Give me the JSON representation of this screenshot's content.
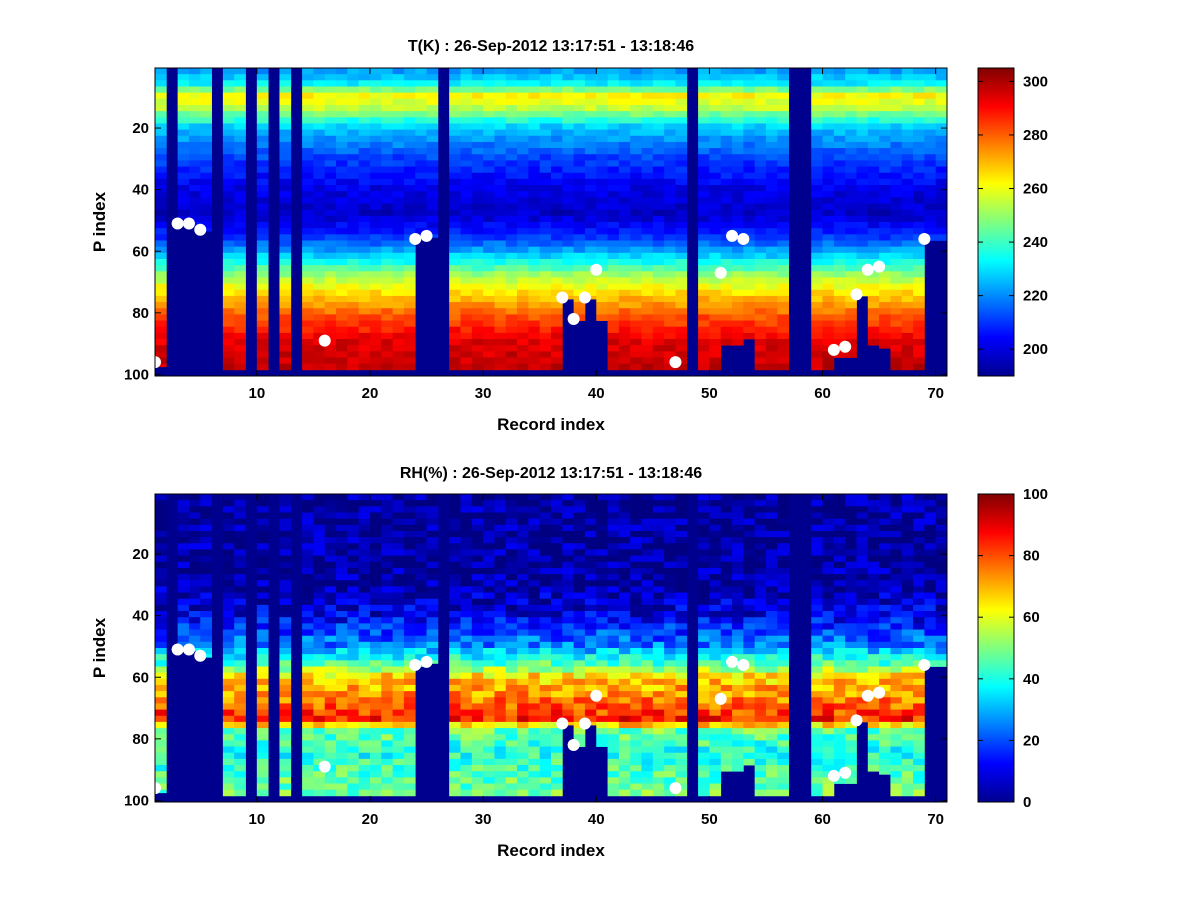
{
  "chart_data": [
    {
      "type": "heatmap",
      "title": "T(K) : 26-Sep-2012 13:17:51 - 13:18:46",
      "xlabel": "Record index",
      "ylabel": "P index",
      "xlim": [
        1,
        71
      ],
      "ylim": [
        100,
        1
      ],
      "xticks": [
        10,
        20,
        30,
        40,
        50,
        60,
        70
      ],
      "yticks": [
        20,
        40,
        60,
        80,
        100
      ],
      "colorbar": {
        "min": 190,
        "max": 305,
        "ticks": [
          200,
          220,
          240,
          260,
          280,
          300
        ]
      },
      "colormap": "jet",
      "value_profile": {
        "levels": [
          1,
          6,
          10,
          14,
          20,
          30,
          40,
          48,
          55,
          62,
          68,
          75,
          82,
          90,
          100
        ],
        "values": [
          220,
          232,
          262,
          255,
          228,
          212,
          202,
          198,
          208,
          228,
          250,
          268,
          282,
          294,
          298
        ]
      },
      "gap_records": [
        2,
        6,
        9,
        11,
        13,
        26,
        48,
        57,
        58
      ],
      "ground_level": [
        [
          1,
          97
        ],
        [
          2,
          97
        ],
        [
          3,
          51
        ],
        [
          4,
          51
        ],
        [
          5,
          53
        ],
        [
          6,
          97
        ],
        [
          7,
          98
        ],
        [
          8,
          98
        ],
        [
          9,
          97
        ],
        [
          10,
          98
        ],
        [
          11,
          97
        ],
        [
          12,
          98
        ],
        [
          13,
          97
        ],
        [
          14,
          98
        ],
        [
          15,
          98
        ],
        [
          16,
          98
        ],
        [
          17,
          98
        ],
        [
          18,
          98
        ],
        [
          19,
          98
        ],
        [
          20,
          98
        ],
        [
          21,
          98
        ],
        [
          22,
          98
        ],
        [
          23,
          98
        ],
        [
          24,
          56
        ],
        [
          25,
          55
        ],
        [
          26,
          97
        ],
        [
          27,
          98
        ],
        [
          28,
          98
        ],
        [
          29,
          98
        ],
        [
          30,
          98
        ],
        [
          31,
          98
        ],
        [
          32,
          98
        ],
        [
          33,
          98
        ],
        [
          34,
          98
        ],
        [
          35,
          98
        ],
        [
          36,
          98
        ],
        [
          37,
          75
        ],
        [
          38,
          82
        ],
        [
          39,
          75
        ],
        [
          40,
          82
        ],
        [
          41,
          98
        ],
        [
          42,
          98
        ],
        [
          43,
          98
        ],
        [
          44,
          98
        ],
        [
          45,
          98
        ],
        [
          46,
          98
        ],
        [
          47,
          98
        ],
        [
          48,
          97
        ],
        [
          49,
          98
        ],
        [
          50,
          98
        ],
        [
          51,
          90
        ],
        [
          52,
          90
        ],
        [
          53,
          88
        ],
        [
          54,
          98
        ],
        [
          55,
          98
        ],
        [
          56,
          98
        ],
        [
          57,
          97
        ],
        [
          58,
          97
        ],
        [
          59,
          98
        ],
        [
          60,
          98
        ],
        [
          61,
          94
        ],
        [
          62,
          94
        ],
        [
          63,
          74
        ],
        [
          64,
          90
        ],
        [
          65,
          91
        ],
        [
          66,
          98
        ],
        [
          67,
          98
        ],
        [
          68,
          98
        ],
        [
          69,
          56
        ],
        [
          70,
          56
        ]
      ],
      "markers": [
        [
          1,
          96
        ],
        [
          3,
          51
        ],
        [
          4,
          51
        ],
        [
          5,
          53
        ],
        [
          16,
          89
        ],
        [
          24,
          56
        ],
        [
          25,
          55
        ],
        [
          37,
          75
        ],
        [
          38,
          82
        ],
        [
          39,
          75
        ],
        [
          40,
          66
        ],
        [
          47,
          96
        ],
        [
          51,
          67
        ],
        [
          52,
          55
        ],
        [
          53,
          56
        ],
        [
          61,
          92
        ],
        [
          62,
          91
        ],
        [
          63,
          74
        ],
        [
          64,
          66
        ],
        [
          65,
          65
        ],
        [
          69,
          56
        ]
      ]
    },
    {
      "type": "heatmap",
      "title": "RH(%) : 26-Sep-2012 13:17:51 - 13:18:46",
      "xlabel": "Record index",
      "ylabel": "P index",
      "xlim": [
        1,
        71
      ],
      "ylim": [
        100,
        1
      ],
      "xticks": [
        10,
        20,
        30,
        40,
        50,
        60,
        70
      ],
      "yticks": [
        20,
        40,
        60,
        80,
        100
      ],
      "colorbar": {
        "min": 0,
        "max": 100,
        "ticks": [
          0,
          20,
          40,
          60,
          80,
          100
        ]
      },
      "colormap": "jet",
      "value_profile": {
        "levels": [
          1,
          30,
          40,
          50,
          56,
          60,
          65,
          70,
          74,
          78,
          85,
          92,
          100
        ],
        "values": [
          2,
          3,
          10,
          25,
          45,
          65,
          72,
          78,
          85,
          48,
          40,
          45,
          50
        ]
      },
      "gap_records": [
        2,
        6,
        9,
        11,
        13,
        26,
        48,
        57,
        58
      ],
      "ground_level": [
        [
          1,
          97
        ],
        [
          2,
          97
        ],
        [
          3,
          51
        ],
        [
          4,
          51
        ],
        [
          5,
          53
        ],
        [
          6,
          97
        ],
        [
          7,
          98
        ],
        [
          8,
          98
        ],
        [
          9,
          97
        ],
        [
          10,
          98
        ],
        [
          11,
          97
        ],
        [
          12,
          98
        ],
        [
          13,
          97
        ],
        [
          14,
          98
        ],
        [
          15,
          98
        ],
        [
          16,
          98
        ],
        [
          17,
          98
        ],
        [
          18,
          98
        ],
        [
          19,
          98
        ],
        [
          20,
          98
        ],
        [
          21,
          98
        ],
        [
          22,
          98
        ],
        [
          23,
          98
        ],
        [
          24,
          56
        ],
        [
          25,
          55
        ],
        [
          26,
          97
        ],
        [
          27,
          98
        ],
        [
          28,
          98
        ],
        [
          29,
          98
        ],
        [
          30,
          98
        ],
        [
          31,
          98
        ],
        [
          32,
          98
        ],
        [
          33,
          98
        ],
        [
          34,
          98
        ],
        [
          35,
          98
        ],
        [
          36,
          98
        ],
        [
          37,
          75
        ],
        [
          38,
          82
        ],
        [
          39,
          75
        ],
        [
          40,
          82
        ],
        [
          41,
          98
        ],
        [
          42,
          98
        ],
        [
          43,
          98
        ],
        [
          44,
          98
        ],
        [
          45,
          98
        ],
        [
          46,
          98
        ],
        [
          47,
          98
        ],
        [
          48,
          97
        ],
        [
          49,
          98
        ],
        [
          50,
          98
        ],
        [
          51,
          90
        ],
        [
          52,
          90
        ],
        [
          53,
          88
        ],
        [
          54,
          98
        ],
        [
          55,
          98
        ],
        [
          56,
          98
        ],
        [
          57,
          97
        ],
        [
          58,
          97
        ],
        [
          59,
          98
        ],
        [
          60,
          98
        ],
        [
          61,
          94
        ],
        [
          62,
          94
        ],
        [
          63,
          74
        ],
        [
          64,
          90
        ],
        [
          65,
          91
        ],
        [
          66,
          98
        ],
        [
          67,
          98
        ],
        [
          68,
          98
        ],
        [
          69,
          56
        ],
        [
          70,
          56
        ]
      ],
      "markers": [
        [
          1,
          96
        ],
        [
          3,
          51
        ],
        [
          4,
          51
        ],
        [
          5,
          53
        ],
        [
          16,
          89
        ],
        [
          24,
          56
        ],
        [
          25,
          55
        ],
        [
          37,
          75
        ],
        [
          38,
          82
        ],
        [
          39,
          75
        ],
        [
          40,
          66
        ],
        [
          47,
          96
        ],
        [
          51,
          67
        ],
        [
          52,
          55
        ],
        [
          53,
          56
        ],
        [
          61,
          92
        ],
        [
          62,
          91
        ],
        [
          63,
          74
        ],
        [
          64,
          66
        ],
        [
          65,
          65
        ],
        [
          69,
          56
        ]
      ]
    }
  ]
}
